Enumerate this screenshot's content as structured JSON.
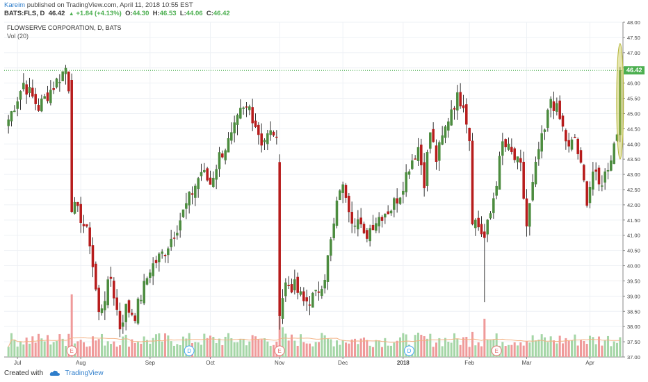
{
  "header": {
    "author": "Kareim",
    "published": "published on TradingView.com, April 11, 2018 10:55 EST",
    "symbol": "BATS:FLS, D",
    "last": "46.42",
    "change": "+1.84 (+4.13%)",
    "o_label": "O:",
    "o": "44.30",
    "h_label": "H:",
    "h": "46.53",
    "l_label": "L:",
    "l": "44.06",
    "c_label": "C:",
    "c": "46.42"
  },
  "legend": {
    "title": "FLOWSERVE CORPORATION, D, BATS",
    "vol": "Vol (20)"
  },
  "footer": {
    "created": "Created with",
    "brand": "TradingView"
  },
  "colors": {
    "up": "#4c8c3f",
    "down": "#b71c1c",
    "vol_up": "#a5d6a7",
    "vol_down": "#ef9a9a",
    "vol_ma": "#f4b183",
    "price_line": "#4caf50",
    "highlight": "#c8c84c"
  },
  "chart_data": {
    "type": "candlestick",
    "title": "FLOWSERVE CORPORATION, D, BATS",
    "ylim": [
      37.0,
      48.0
    ],
    "yticks": [
      "48.00",
      "47.50",
      "47.00",
      "46.50",
      "46.00",
      "45.50",
      "45.00",
      "44.50",
      "44.00",
      "43.50",
      "43.00",
      "42.50",
      "42.00",
      "41.50",
      "41.00",
      "40.50",
      "40.00",
      "39.50",
      "39.00",
      "38.50",
      "38.00",
      "37.50",
      "37.00"
    ],
    "last_price": 46.42,
    "last_label": "46.42",
    "xticks": [
      {
        "label": "Jul",
        "i": 3
      },
      {
        "label": "Aug",
        "i": 24
      },
      {
        "label": "Sep",
        "i": 47
      },
      {
        "label": "Oct",
        "i": 67
      },
      {
        "label": "Nov",
        "i": 90
      },
      {
        "label": "Dec",
        "i": 111
      },
      {
        "label": "2018",
        "i": 131
      },
      {
        "label": "Feb",
        "i": 153
      },
      {
        "label": "Mar",
        "i": 172
      },
      {
        "label": "Apr",
        "i": 193
      }
    ],
    "events": [
      {
        "label": "E",
        "i": 21
      },
      {
        "label": "D",
        "i": 60
      },
      {
        "label": "E",
        "i": 90
      },
      {
        "label": "D",
        "i": 133
      },
      {
        "label": "E",
        "i": 162
      }
    ],
    "anchors": [
      [
        0,
        44.8
      ],
      [
        5,
        46.0
      ],
      [
        10,
        45.2
      ],
      [
        17,
        46.2
      ],
      [
        19,
        46.5
      ],
      [
        20,
        45.9
      ],
      [
        21,
        42.0
      ],
      [
        24,
        41.6
      ],
      [
        27,
        40.8
      ],
      [
        30,
        38.4
      ],
      [
        32,
        39.0
      ],
      [
        34,
        39.6
      ],
      [
        37,
        38.0
      ],
      [
        39,
        38.6
      ],
      [
        42,
        38.4
      ],
      [
        45,
        39.3
      ],
      [
        47,
        39.9
      ],
      [
        52,
        40.5
      ],
      [
        56,
        41.3
      ],
      [
        60,
        42.2
      ],
      [
        64,
        43.1
      ],
      [
        67,
        42.7
      ],
      [
        70,
        43.6
      ],
      [
        74,
        44.2
      ],
      [
        77,
        45.0
      ],
      [
        80,
        45.2
      ],
      [
        84,
        44.1
      ],
      [
        88,
        44.4
      ],
      [
        89,
        44.0
      ],
      [
        90,
        38.6
      ],
      [
        92,
        39.4
      ],
      [
        95,
        39.3
      ],
      [
        98,
        38.8
      ],
      [
        102,
        39.0
      ],
      [
        105,
        39.7
      ],
      [
        108,
        41.3
      ],
      [
        110,
        42.6
      ],
      [
        112,
        42.4
      ],
      [
        114,
        41.6
      ],
      [
        116,
        41.5
      ],
      [
        118,
        40.9
      ],
      [
        121,
        41.4
      ],
      [
        124,
        41.7
      ],
      [
        127,
        41.9
      ],
      [
        130,
        42.4
      ],
      [
        133,
        43.3
      ],
      [
        136,
        43.9
      ],
      [
        138,
        42.8
      ],
      [
        140,
        44.4
      ],
      [
        142,
        43.5
      ],
      [
        145,
        44.5
      ],
      [
        147,
        45.2
      ],
      [
        149,
        45.5
      ],
      [
        151,
        45.4
      ],
      [
        153,
        44.2
      ],
      [
        154,
        41.6
      ],
      [
        156,
        41.3
      ],
      [
        158,
        40.9
      ],
      [
        160,
        41.7
      ],
      [
        162,
        42.8
      ],
      [
        164,
        44.0
      ],
      [
        166,
        43.8
      ],
      [
        168,
        43.5
      ],
      [
        170,
        43.2
      ],
      [
        172,
        41.3
      ],
      [
        174,
        42.6
      ],
      [
        176,
        43.8
      ],
      [
        178,
        44.4
      ],
      [
        180,
        45.5
      ],
      [
        182,
        45.1
      ],
      [
        184,
        44.5
      ],
      [
        186,
        43.8
      ],
      [
        188,
        44.2
      ],
      [
        190,
        43.2
      ],
      [
        192,
        42.2
      ],
      [
        194,
        43.1
      ],
      [
        196,
        42.6
      ],
      [
        198,
        43.0
      ],
      [
        200,
        43.6
      ],
      [
        202,
        44.4
      ],
      [
        203,
        46.42
      ]
    ],
    "volume_note": "volume bars below price with 20-day moving average"
  }
}
